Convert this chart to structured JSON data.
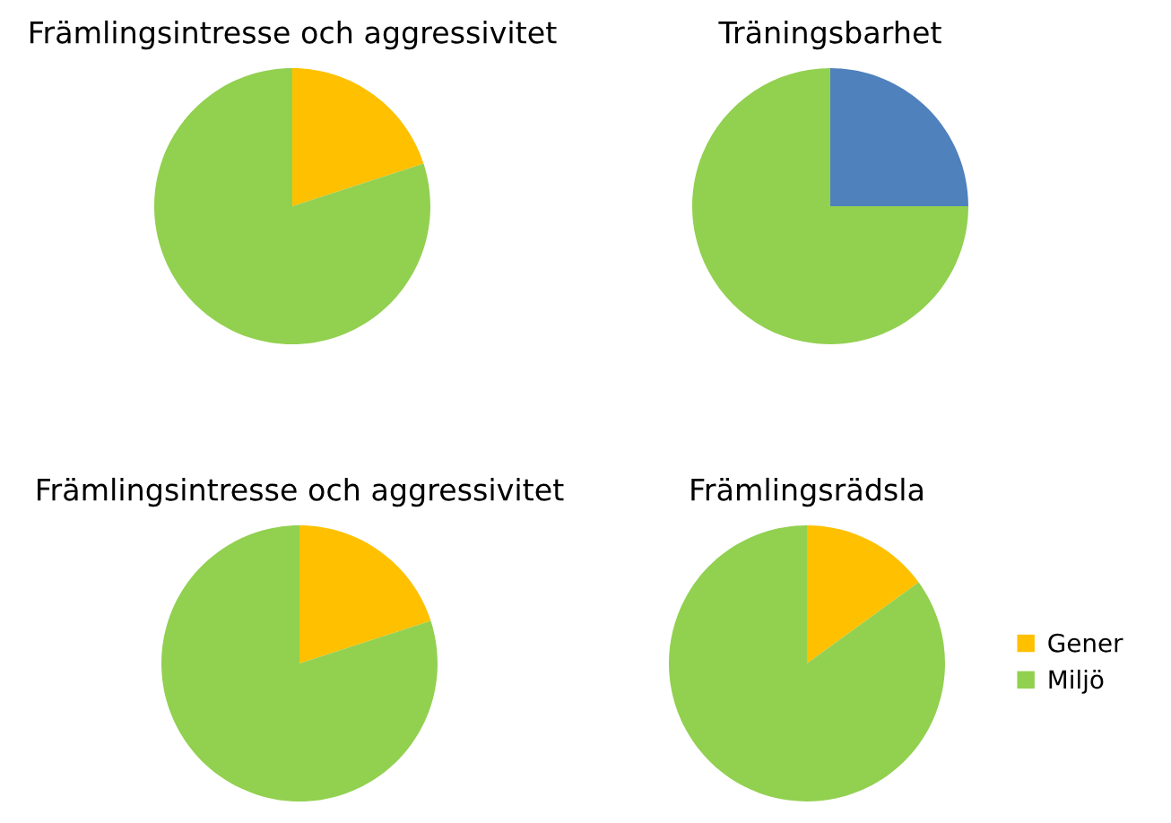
{
  "chart_data": [
    {
      "type": "pie",
      "title": "Främlingsintresse och aggressivitet",
      "categories": [
        null,
        null
      ],
      "values": [
        20,
        80
      ],
      "colors": [
        "#ffc000",
        "#92d050"
      ]
    },
    {
      "type": "pie",
      "title": "Träningsbarhet",
      "categories": [
        null,
        null
      ],
      "values": [
        25,
        75
      ],
      "colors": [
        "#4f81bd",
        "#92d050"
      ]
    },
    {
      "type": "pie",
      "title": "Främlingsintresse och aggressivitet",
      "categories": [
        null,
        null
      ],
      "values": [
        20,
        80
      ],
      "colors": [
        "#ffc000",
        "#92d050"
      ]
    },
    {
      "type": "pie",
      "title": "Främlingsrädsla",
      "categories": [
        "Gener",
        "Miljö"
      ],
      "values": [
        15,
        85
      ],
      "colors": [
        "#ffc000",
        "#92d050"
      ],
      "legend": "right"
    }
  ]
}
